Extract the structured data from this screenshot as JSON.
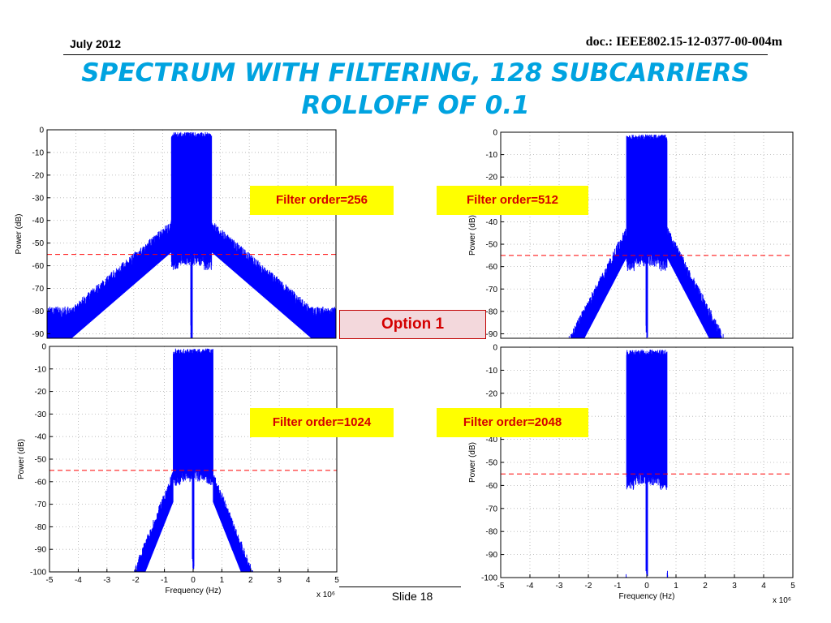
{
  "header": {
    "date": "July 2012",
    "doc": "doc.: IEEE802.15-12-0377-00-004m"
  },
  "title": "SPECTRUM WITH FILTERING, 128 SUBCARRIERS ROLLOFF OF 0.1",
  "option_label": "Option 1",
  "footer": {
    "slide": "Slide 18"
  },
  "colors": {
    "title": "#00a3e0",
    "series": "#0000ff",
    "threshold": "#ff0000",
    "label_bg": "#ffff00",
    "label_text": "#d40000"
  },
  "chart_data": [
    {
      "type": "line",
      "filter_label": "Filter order=256",
      "xlabel": "",
      "ylabel": "Power (dB)",
      "xlim": [
        -5,
        5
      ],
      "ylim": [
        -92,
        0
      ],
      "y_ticks": [
        0,
        -10,
        -20,
        -30,
        -40,
        -50,
        -60,
        -70,
        -80,
        -90
      ],
      "x_ticks": [],
      "x_exponent": "",
      "grid": true,
      "threshold_db": -55,
      "spectrum": {
        "passband_mhz": [
          -0.7,
          0.7
        ],
        "peak_db": -1,
        "mid_db": -42,
        "notch_db": -92,
        "shoulder_db": -40,
        "skirt_decay_db_per_mhz": 11,
        "noise_floor_db": -78
      }
    },
    {
      "type": "line",
      "filter_label": "Filter order=512",
      "xlabel": "",
      "ylabel": "Power (dB)",
      "xlim": [
        -5,
        5
      ],
      "ylim": [
        -92,
        0
      ],
      "y_ticks": [
        0,
        -10,
        -20,
        -30,
        -40,
        -50,
        -60,
        -70,
        -80,
        -90
      ],
      "x_ticks": [],
      "x_exponent": "",
      "grid": true,
      "threshold_db": -55,
      "spectrum": {
        "passband_mhz": [
          -0.7,
          0.7
        ],
        "peak_db": -1,
        "mid_db": -42,
        "notch_db": -92,
        "shoulder_db": -42,
        "skirt_decay_db_per_mhz": 25,
        "noise_floor_db": -95
      }
    },
    {
      "type": "line",
      "filter_label": "Filter order=1024",
      "xlabel": "Frequency (Hz)",
      "ylabel": "Power (dB)",
      "xlim": [
        -5,
        5
      ],
      "ylim": [
        -100,
        0
      ],
      "y_ticks": [
        0,
        -10,
        -20,
        -30,
        -40,
        -50,
        -60,
        -70,
        -80,
        -90,
        -100
      ],
      "x_ticks": [
        -5,
        -4,
        -3,
        -2,
        -1,
        0,
        1,
        2,
        3,
        4,
        5
      ],
      "x_exponent": "x 10⁶",
      "grid": true,
      "threshold_db": -55,
      "spectrum": {
        "passband_mhz": [
          -0.7,
          0.7
        ],
        "peak_db": -1,
        "mid_db": -42,
        "notch_db": -100,
        "shoulder_db": -55,
        "skirt_decay_db_per_mhz": 32,
        "noise_floor_db": -100
      }
    },
    {
      "type": "line",
      "filter_label": "Filter order=2048",
      "xlabel": "Frequency (Hz)",
      "ylabel": "Power (dB)",
      "xlim": [
        -5,
        5
      ],
      "ylim": [
        -100,
        0
      ],
      "y_ticks": [
        0,
        -10,
        -20,
        -30,
        -40,
        -50,
        -60,
        -70,
        -80,
        -90,
        -100
      ],
      "x_ticks": [
        -5,
        -4,
        -3,
        -2,
        -1,
        0,
        1,
        2,
        3,
        4,
        5
      ],
      "x_exponent": "x 10⁶",
      "grid": true,
      "threshold_db": -55,
      "spectrum": {
        "passband_mhz": [
          -0.7,
          0.7
        ],
        "peak_db": -1,
        "mid_db": -42,
        "notch_db": -100,
        "shoulder_db": -95,
        "skirt_decay_db_per_mhz": 220,
        "noise_floor_db": -100
      }
    }
  ]
}
